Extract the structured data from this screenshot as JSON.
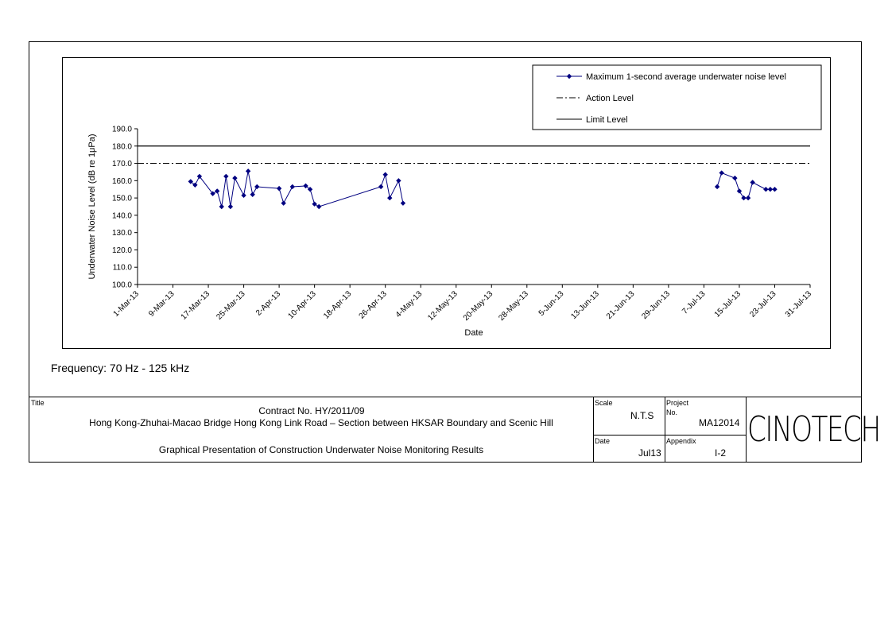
{
  "chart_data": {
    "type": "line",
    "ylabel": "Underwater Noise Level (dB re 1μPa)",
    "xlabel": "Date",
    "ylim": [
      100,
      190
    ],
    "yticks": [
      "100.0",
      "110.0",
      "120.0",
      "130.0",
      "140.0",
      "150.0",
      "160.0",
      "170.0",
      "180.0",
      "190.0"
    ],
    "xticks": [
      "1-Mar-13",
      "9-Mar-13",
      "17-Mar-13",
      "25-Mar-13",
      "2-Apr-13",
      "10-Apr-13",
      "18-Apr-13",
      "26-Apr-13",
      "4-May-13",
      "12-May-13",
      "20-May-13",
      "28-May-13",
      "5-Jun-13",
      "13-Jun-13",
      "21-Jun-13",
      "29-Jun-13",
      "7-Jul-13",
      "15-Jul-13",
      "23-Jul-13",
      "31-Jul-13"
    ],
    "xlim": [
      "2013-03-01",
      "2013-07-31"
    ],
    "legend_position": "top-right",
    "grid": false,
    "series": [
      {
        "name": "Maximum 1-second average underwater noise level",
        "color": "#000080",
        "marker": "diamond",
        "segments": [
          [
            {
              "x": "2013-03-13",
              "y": 159.5
            },
            {
              "x": "2013-03-14",
              "y": 157.5
            },
            {
              "x": "2013-03-15",
              "y": 162.5
            },
            {
              "x": "2013-03-18",
              "y": 152.5
            },
            {
              "x": "2013-03-19",
              "y": 154.0
            },
            {
              "x": "2013-03-20",
              "y": 145.0
            },
            {
              "x": "2013-03-21",
              "y": 162.5
            },
            {
              "x": "2013-03-22",
              "y": 145.0
            },
            {
              "x": "2013-03-23",
              "y": 161.5
            },
            {
              "x": "2013-03-25",
              "y": 151.5
            },
            {
              "x": "2013-03-26",
              "y": 165.5
            },
            {
              "x": "2013-03-27",
              "y": 152.0
            },
            {
              "x": "2013-03-28",
              "y": 156.5
            },
            {
              "x": "2013-04-02",
              "y": 155.5
            },
            {
              "x": "2013-04-03",
              "y": 147.0
            },
            {
              "x": "2013-04-05",
              "y": 156.5
            },
            {
              "x": "2013-04-08",
              "y": 157.0
            },
            {
              "x": "2013-04-09",
              "y": 155.0
            },
            {
              "x": "2013-04-10",
              "y": 146.5
            },
            {
              "x": "2013-04-11",
              "y": 145.0
            },
            {
              "x": "2013-04-25",
              "y": 156.5
            },
            {
              "x": "2013-04-26",
              "y": 163.5
            },
            {
              "x": "2013-04-27",
              "y": 150.0
            },
            {
              "x": "2013-04-29",
              "y": 160.0
            },
            {
              "x": "2013-04-30",
              "y": 147.0
            }
          ],
          [
            {
              "x": "2013-07-10",
              "y": 156.5
            },
            {
              "x": "2013-07-11",
              "y": 164.5
            },
            {
              "x": "2013-07-14",
              "y": 161.5
            },
            {
              "x": "2013-07-15",
              "y": 154.0
            },
            {
              "x": "2013-07-16",
              "y": 150.0
            },
            {
              "x": "2013-07-17",
              "y": 150.0
            },
            {
              "x": "2013-07-18",
              "y": 159.0
            },
            {
              "x": "2013-07-21",
              "y": 155.0
            },
            {
              "x": "2013-07-22",
              "y": 155.0
            },
            {
              "x": "2013-07-23",
              "y": 155.0
            }
          ]
        ]
      },
      {
        "name": "Action Level",
        "color": "#000000",
        "style": "dash-dot",
        "value": 170
      },
      {
        "name": "Limit Level",
        "color": "#000000",
        "style": "solid",
        "value": 180
      }
    ]
  },
  "note": {
    "frequency": "Frequency: 70 Hz - 125 kHz"
  },
  "titleblock": {
    "title_label": "Title",
    "line1": "Contract No. HY/2011/09",
    "line2": "Hong Kong-Zhuhai-Macao Bridge Hong Kong Link Road – Section between HKSAR Boundary and Scenic Hill",
    "line3": "Graphical Presentation of Construction Underwater Noise Monitoring Results",
    "scale_label": "Scale",
    "scale_value": "N.T.S",
    "project_label": "Project",
    "project_no_label": "No.",
    "project_value": "MA12014",
    "date_label": "Date",
    "date_value": "Jul13",
    "appendix_label": "Appendix",
    "appendix_value": "I-2",
    "logo": "CINOTECH"
  }
}
